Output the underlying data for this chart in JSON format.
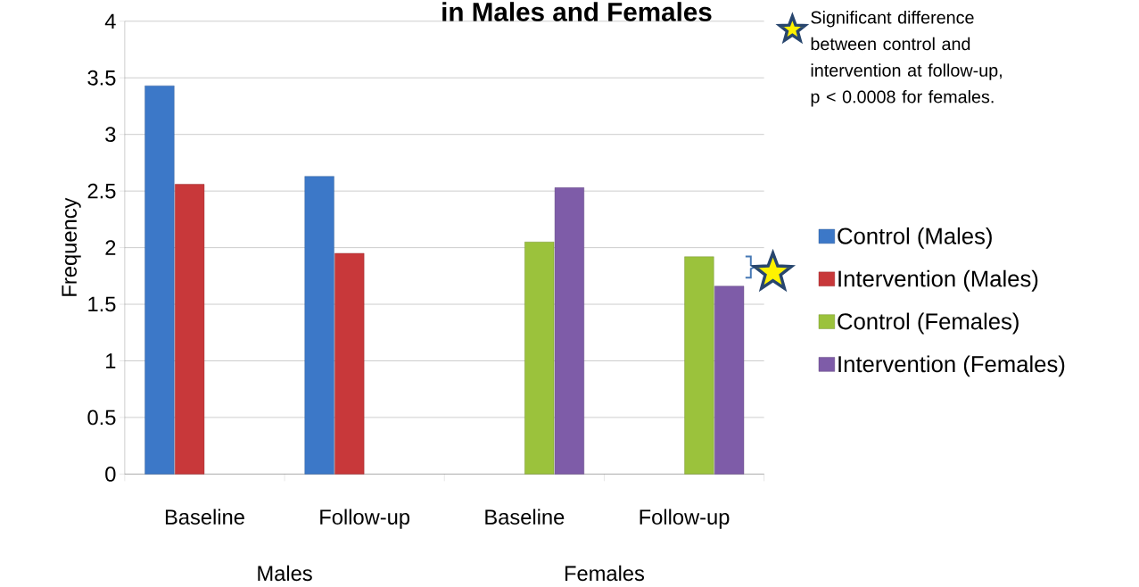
{
  "chart_data": {
    "type": "bar",
    "title": "in Males and Females",
    "ylabel": "Frequency",
    "categories": [
      "Baseline",
      "Follow-up",
      "Baseline",
      "Follow-up"
    ],
    "series": [
      {
        "name": "Control (Males)",
        "color": "#3c78c8",
        "values": [
          3.43,
          2.63,
          null,
          null
        ]
      },
      {
        "name": "Intervention (Males)",
        "color": "#c8383a",
        "values": [
          2.56,
          1.95,
          null,
          null
        ]
      },
      {
        "name": "Control (Females)",
        "color": "#9bc23c",
        "values": [
          null,
          null,
          2.05,
          1.92
        ]
      },
      {
        "name": "Intervention (Females)",
        "color": "#7e5ca8",
        "values": [
          null,
          null,
          2.53,
          1.66
        ]
      }
    ],
    "ylim": [
      0,
      4
    ],
    "yticks": [
      0,
      0.5,
      1,
      1.5,
      2,
      2.5,
      3,
      3.5,
      4
    ],
    "grid": "y",
    "legend": "right",
    "annotations": [
      "Significant difference between control and intervention at follow-up, p < 0.0008 for females.",
      "Males",
      "Females"
    ]
  }
}
